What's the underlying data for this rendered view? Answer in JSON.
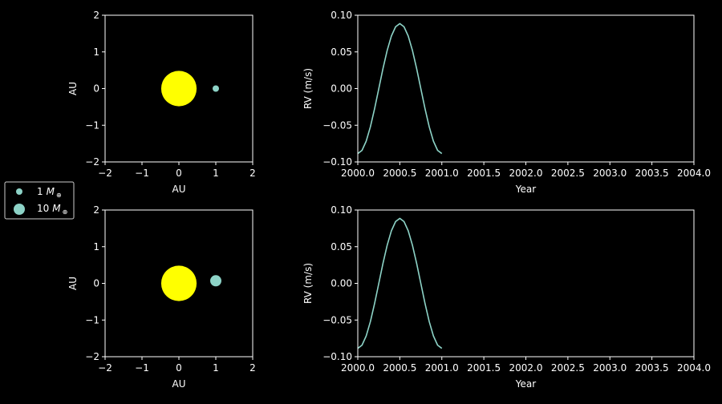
{
  "theme": {
    "background": "#000000",
    "foreground": "#ffffff",
    "planet_color": "#8dd3c7",
    "star_color": "#ffff00",
    "line_color": "#8dd3c7",
    "legend_border": "#cccccc"
  },
  "legend": {
    "placement": "left-middle",
    "entries": [
      {
        "number": "1",
        "symbol": "M",
        "subscript": "⊕",
        "marker": "small-circle"
      },
      {
        "number": "10",
        "symbol": "M",
        "subscript": "⊕",
        "marker": "large-circle"
      }
    ]
  },
  "chart_data": [
    {
      "id": "orbit-top",
      "type": "scatter",
      "xlabel": "AU",
      "ylabel": "AU",
      "xlim": [
        -2,
        2
      ],
      "ylim": [
        -2,
        2
      ],
      "xticks": [
        -2,
        -1,
        0,
        1,
        2
      ],
      "yticks": [
        -2,
        -1,
        0,
        1,
        2
      ],
      "xtick_labels": [
        "−2",
        "−1",
        "0",
        "1",
        "2"
      ],
      "ytick_labels": [
        "−2",
        "−1",
        "0",
        "1",
        "2"
      ],
      "grid": false,
      "star": {
        "x": 0,
        "y": 0,
        "color": "#ffff00"
      },
      "planet": {
        "x": 1.0,
        "y": 0.0,
        "mass_earth": 1,
        "color": "#8dd3c7"
      }
    },
    {
      "id": "rv-top",
      "type": "line",
      "xlabel": "Year",
      "ylabel": "RV (m/s)",
      "xlim": [
        2000.0,
        2004.0
      ],
      "ylim": [
        -0.1,
        0.1
      ],
      "xticks": [
        2000.0,
        2000.5,
        2001.0,
        2001.5,
        2002.0,
        2002.5,
        2003.0,
        2003.5,
        2004.0
      ],
      "xtick_labels": [
        "2000.0",
        "2000.5",
        "2001.0",
        "2001.5",
        "2002.0",
        "2002.5",
        "2003.0",
        "2003.5",
        "2004.0"
      ],
      "yticks": [
        -0.1,
        -0.05,
        0.0,
        0.05,
        0.1
      ],
      "ytick_labels": [
        "−0.10",
        "−0.05",
        "0.00",
        "0.05",
        "0.10"
      ],
      "grid": false,
      "series": [
        {
          "color": "#8dd3c7",
          "x": [
            2000.0,
            2000.05,
            2000.1,
            2000.15,
            2000.2,
            2000.25,
            2000.3,
            2000.35,
            2000.4,
            2000.45,
            2000.5,
            2000.55,
            2000.6,
            2000.65,
            2000.7,
            2000.75,
            2000.8,
            2000.85,
            2000.9,
            2000.95,
            2001.0
          ],
          "y": [
            -0.0886,
            -0.0843,
            -0.0717,
            -0.0521,
            -0.0274,
            0.0,
            0.0274,
            0.0521,
            0.0717,
            0.0843,
            0.0886,
            0.0843,
            0.0717,
            0.0521,
            0.0274,
            0.0,
            -0.0274,
            -0.0521,
            -0.0717,
            -0.0843,
            -0.0886
          ]
        }
      ]
    },
    {
      "id": "orbit-bottom",
      "type": "scatter",
      "xlabel": "AU",
      "ylabel": "AU",
      "xlim": [
        -2,
        2
      ],
      "ylim": [
        -2,
        2
      ],
      "xticks": [
        -2,
        -1,
        0,
        1,
        2
      ],
      "yticks": [
        -2,
        -1,
        0,
        1,
        2
      ],
      "xtick_labels": [
        "−2",
        "−1",
        "0",
        "1",
        "2"
      ],
      "ytick_labels": [
        "−2",
        "−1",
        "0",
        "1",
        "2"
      ],
      "grid": false,
      "star": {
        "x": 0,
        "y": 0,
        "color": "#ffff00"
      },
      "planet": {
        "x": 1.0,
        "y": 0.07,
        "mass_earth": 10,
        "color": "#8dd3c7"
      }
    },
    {
      "id": "rv-bottom",
      "type": "line",
      "xlabel": "Year",
      "ylabel": "RV (m/s)",
      "xlim": [
        2000.0,
        2004.0
      ],
      "ylim": [
        -0.1,
        0.1
      ],
      "xticks": [
        2000.0,
        2000.5,
        2001.0,
        2001.5,
        2002.0,
        2002.5,
        2003.0,
        2003.5,
        2004.0
      ],
      "xtick_labels": [
        "2000.0",
        "2000.5",
        "2001.0",
        "2001.5",
        "2002.0",
        "2002.5",
        "2003.0",
        "2003.5",
        "2004.0"
      ],
      "yticks": [
        -0.1,
        -0.05,
        0.0,
        0.05,
        0.1
      ],
      "ytick_labels": [
        "−0.10",
        "−0.05",
        "0.00",
        "0.05",
        "0.10"
      ],
      "grid": false,
      "series": [
        {
          "color": "#8dd3c7",
          "x": [
            2000.0,
            2000.05,
            2000.1,
            2000.15,
            2000.2,
            2000.25,
            2000.3,
            2000.35,
            2000.4,
            2000.45,
            2000.5,
            2000.55,
            2000.6,
            2000.65,
            2000.7,
            2000.75,
            2000.8,
            2000.85,
            2000.9,
            2000.95,
            2001.0
          ],
          "y": [
            -0.0886,
            -0.0843,
            -0.0717,
            -0.0521,
            -0.0274,
            0.0,
            0.0274,
            0.0521,
            0.0717,
            0.0843,
            0.0886,
            0.0843,
            0.0717,
            0.0521,
            0.0274,
            0.0,
            -0.0274,
            -0.0521,
            -0.0717,
            -0.0843,
            -0.0886
          ]
        }
      ]
    }
  ]
}
